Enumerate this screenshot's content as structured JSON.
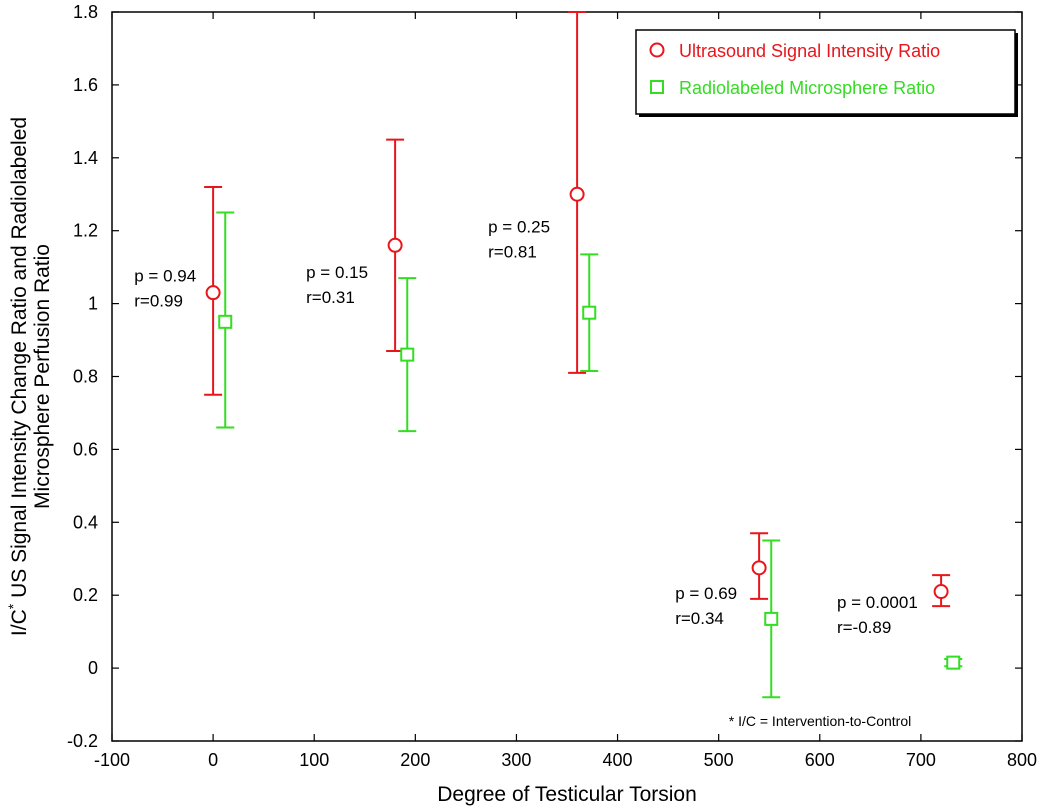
{
  "chart_data": {
    "type": "scatter",
    "xlabel": "Degree of Testicular Torsion",
    "ylabel_lines": [
      "I/C* US Signal Intensity Change Ratio and Radiolabeled",
      "Microsphere Perfusion Ratio"
    ],
    "ylabel_main": "I/C",
    "ylabel_sup": "*",
    "ylabel_rest": " US Signal Intensity Change Ratio and Radiolabeled",
    "ylabel_line2": "Microsphere Perfusion Ratio",
    "xlim": [
      -100,
      800
    ],
    "ylim": [
      -0.2,
      1.8
    ],
    "xticks": [
      -100,
      0,
      100,
      200,
      300,
      400,
      500,
      600,
      700,
      800
    ],
    "yticks": [
      -0.2,
      0,
      0.2,
      0.4,
      0.6,
      0.8,
      1,
      1.2,
      1.4,
      1.6,
      1.8
    ],
    "ytick_labels": [
      "-0.2",
      "0",
      "0.2",
      "0.4",
      "0.6",
      "0.8",
      "1",
      "1.2",
      "1.4",
      "1.6",
      "1.8"
    ],
    "legend_position": "top-right",
    "series": [
      {
        "name": "Ultrasound Signal Intensity Ratio",
        "marker": "circle",
        "color": "#e8161b",
        "points": [
          {
            "x": 0,
            "y": 1.03,
            "err_low": 0.75,
            "err_high": 1.32
          },
          {
            "x": 180,
            "y": 1.16,
            "err_low": 0.87,
            "err_high": 1.45
          },
          {
            "x": 360,
            "y": 1.3,
            "err_low": 0.81,
            "err_high": 1.8
          },
          {
            "x": 540,
            "y": 0.275,
            "err_low": 0.19,
            "err_high": 0.37
          },
          {
            "x": 720,
            "y": 0.21,
            "err_low": 0.17,
            "err_high": 0.255
          }
        ]
      },
      {
        "name": "Radiolabeled Microsphere Ratio",
        "marker": "square",
        "color": "#33dd22",
        "points": [
          {
            "x": 12,
            "y": 0.95,
            "err_low": 0.66,
            "err_high": 1.25
          },
          {
            "x": 192,
            "y": 0.86,
            "err_low": 0.65,
            "err_high": 1.07
          },
          {
            "x": 372,
            "y": 0.975,
            "err_low": 0.815,
            "err_high": 1.135
          },
          {
            "x": 552,
            "y": 0.135,
            "err_low": -0.08,
            "err_high": 0.35
          },
          {
            "x": 732,
            "y": 0.015,
            "err_low": 0.005,
            "err_high": 0.025
          }
        ]
      }
    ],
    "annotations": [
      {
        "x": -78,
        "y": 1.06,
        "lines": [
          "p = 0.94",
          "r=0.99"
        ]
      },
      {
        "x": 92,
        "y": 1.07,
        "lines": [
          "p = 0.15",
          "r=0.31"
        ]
      },
      {
        "x": 272,
        "y": 1.195,
        "lines": [
          "p = 0.25",
          "r=0.81"
        ]
      },
      {
        "x": 457,
        "y": 0.19,
        "lines": [
          "p = 0.69",
          "r=0.34"
        ]
      },
      {
        "x": 617,
        "y": 0.165,
        "lines": [
          "p = 0.0001",
          "r=-0.89"
        ]
      }
    ],
    "footnote": "*  I/C = Intervention-to-Control"
  }
}
